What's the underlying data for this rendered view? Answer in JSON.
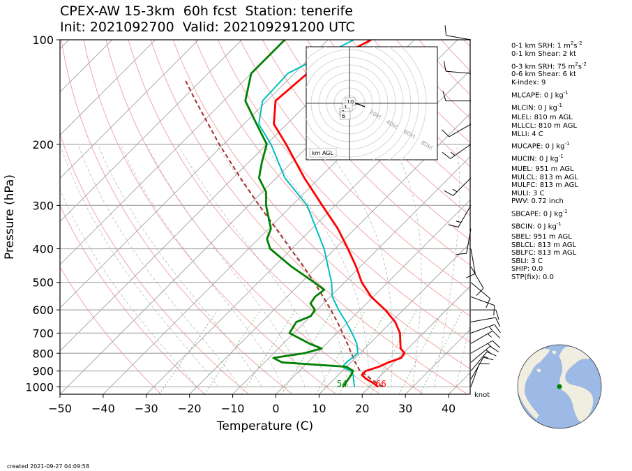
{
  "header": {
    "title_line1": "CPEX-AW 15-3km  60h fcst  Station: tenerife",
    "title_line2": "Init: 2021092700  Valid: 202109291200 UTC"
  },
  "footer": {
    "created": "created 2021-09-27 04:09:58"
  },
  "stats": [
    {
      "label": "0-1 km SRH: 1 m",
      "sup": "2",
      "mid": "s",
      "sup2": "-2"
    },
    {
      "label": "0-1 km Shear: 2 kt"
    },
    {
      "label": "0-3 km SRH: 75 m",
      "sup": "2",
      "mid": "s",
      "sup2": "-2",
      "gap": true
    },
    {
      "label": "0-6 km Shear: 6 kt"
    },
    {
      "label": "K-index: 9"
    },
    {
      "label": "MLCAPE: 0 J kg",
      "sup2": "-1",
      "gap": true
    },
    {
      "label": "MLCIN: 0 J kg",
      "sup2": "-1",
      "gap": true
    },
    {
      "label": "MLEL: 810 m AGL",
      "gap": true
    },
    {
      "label": "MLLCL: 810 m AGL"
    },
    {
      "label": "MLLI: 4 C"
    },
    {
      "label": "MUCAPE: 0 J kg",
      "sup2": "-1",
      "gap": true
    },
    {
      "label": "MUCIN: 0 J kg",
      "sup2": "-1",
      "gap": true
    },
    {
      "label": "MUEL: 951 m AGL",
      "gap": true
    },
    {
      "label": "MULCL: 813 m AGL"
    },
    {
      "label": "MULFC: 813 m AGL"
    },
    {
      "label": "MULI: 3 C"
    },
    {
      "label": "PWV: 0.72 inch"
    },
    {
      "label": "SBCAPE: 0 J kg",
      "sup2": "-1",
      "gap": true
    },
    {
      "label": "SBCIN: 0 J kg",
      "sup2": "-1",
      "gap": true
    },
    {
      "label": "SBEL: 951 m AGL",
      "gap": true
    },
    {
      "label": "SBLCL: 813 m AGL"
    },
    {
      "label": "SBLFC: 813 m AGL"
    },
    {
      "label": "SBLI: 3 C"
    },
    {
      "label": "SHIP: 0.0"
    },
    {
      "label": "STP(fix): 0.0"
    }
  ],
  "colors": {
    "temperature": "#ff0000",
    "dewpoint": "#008000",
    "wetbulb": "#00bfbf",
    "parcel": "#a52a2a",
    "isobar": "#aaaaaa",
    "isotherm": "#aaaaaa",
    "dry_adiabat": "#f4a6a6",
    "moist_adiabat": "#bbbbbb",
    "mixing_ratio": "#7fbf7f",
    "ocean": "#9db9e6",
    "land": "#efeee0"
  },
  "chart_data": {
    "type": "line",
    "subtype": "skew-T log-p",
    "xlabel": "Temperature (C)",
    "ylabel": "Pressure (hPa)",
    "xlim": [
      -50,
      45
    ],
    "ylim": [
      1050,
      100
    ],
    "y_scale": "log",
    "xticks": [
      -50,
      -40,
      -30,
      -20,
      -10,
      0,
      10,
      20,
      30,
      40
    ],
    "yticks": [
      100,
      200,
      300,
      400,
      500,
      600,
      700,
      800,
      900,
      1000
    ],
    "grid": true,
    "surface_labels": {
      "dewpoint": "54",
      "temperature": "66"
    },
    "wind_unit_label": "knot",
    "series": [
      {
        "name": "temperature",
        "points": [
          [
            1000,
            22
          ],
          [
            975,
            20
          ],
          [
            950,
            17.5
          ],
          [
            925,
            15.5
          ],
          [
            900,
            15.4
          ],
          [
            875,
            17.5
          ],
          [
            850,
            18.7
          ],
          [
            825,
            20.6
          ],
          [
            800,
            20.3
          ],
          [
            775,
            18.3
          ],
          [
            750,
            17.1
          ],
          [
            700,
            14.6
          ],
          [
            650,
            10.9
          ],
          [
            600,
            5.8
          ],
          [
            550,
            -0.5
          ],
          [
            500,
            -6.0
          ],
          [
            450,
            -11.0
          ],
          [
            400,
            -17.0
          ],
          [
            350,
            -24.0
          ],
          [
            300,
            -33.0
          ],
          [
            250,
            -43.5
          ],
          [
            200,
            -55.5
          ],
          [
            175,
            -63.0
          ],
          [
            150,
            -68.0
          ],
          [
            125,
            -67.0
          ],
          [
            100,
            -60.0
          ]
        ]
      },
      {
        "name": "dewpoint",
        "points": [
          [
            1000,
            13.8
          ],
          [
            950,
            13.3
          ],
          [
            925,
            13.0
          ],
          [
            900,
            12.5
          ],
          [
            875,
            10.0
          ],
          [
            850,
            -6.0
          ],
          [
            825,
            -9.0
          ],
          [
            800,
            -3.0
          ],
          [
            775,
            0.0
          ],
          [
            750,
            -4.0
          ],
          [
            700,
            -11.0
          ],
          [
            650,
            -12.0
          ],
          [
            625,
            -10.0
          ],
          [
            600,
            -10.5
          ],
          [
            575,
            -13.0
          ],
          [
            550,
            -13.5
          ],
          [
            525,
            -13.0
          ],
          [
            500,
            -17.0
          ],
          [
            450,
            -26.0
          ],
          [
            400,
            -35.0
          ],
          [
            375,
            -38.0
          ],
          [
            350,
            -39.5
          ],
          [
            300,
            -46.0
          ],
          [
            275,
            -49.0
          ],
          [
            250,
            -54.0
          ],
          [
            225,
            -57.0
          ],
          [
            200,
            -60.0
          ],
          [
            175,
            -67.0
          ],
          [
            150,
            -75.0
          ],
          [
            125,
            -80.0
          ],
          [
            100,
            -80.0
          ]
        ]
      },
      {
        "name": "wetbulb",
        "points": [
          [
            1000,
            16.5
          ],
          [
            975,
            15.5
          ],
          [
            950,
            14.5
          ],
          [
            925,
            13.5
          ],
          [
            900,
            12.0
          ],
          [
            875,
            9.0
          ],
          [
            850,
            9.0
          ],
          [
            800,
            9.5
          ],
          [
            750,
            7.0
          ],
          [
            700,
            3.5
          ],
          [
            650,
            -0.5
          ],
          [
            600,
            -5.0
          ],
          [
            550,
            -9.5
          ],
          [
            500,
            -13.0
          ],
          [
            450,
            -17.5
          ],
          [
            400,
            -22.5
          ],
          [
            350,
            -29.0
          ],
          [
            300,
            -36.5
          ],
          [
            250,
            -48.0
          ],
          [
            200,
            -59.0
          ],
          [
            175,
            -66.5
          ],
          [
            150,
            -71.0
          ],
          [
            125,
            -71.5
          ],
          [
            100,
            -64.0
          ]
        ]
      },
      {
        "name": "parcel",
        "points": [
          [
            1000,
            23.0
          ],
          [
            975,
            20.8
          ],
          [
            950,
            18.6
          ],
          [
            925,
            16.4
          ],
          [
            900,
            14.1
          ],
          [
            875,
            12.6
          ],
          [
            850,
            11.0
          ],
          [
            800,
            8.0
          ],
          [
            750,
            4.8
          ],
          [
            700,
            1.3
          ],
          [
            650,
            -2.5
          ],
          [
            600,
            -6.8
          ],
          [
            550,
            -11.6
          ],
          [
            500,
            -17.0
          ],
          [
            450,
            -23.2
          ],
          [
            400,
            -30.3
          ],
          [
            350,
            -38.3
          ],
          [
            300,
            -47.6
          ],
          [
            250,
            -58.3
          ],
          [
            200,
            -71.0
          ],
          [
            150,
            -86.5
          ],
          [
            130,
            -94.0
          ]
        ]
      }
    ],
    "hodograph": {
      "label": "km AGL",
      "ring_labels": [
        "20kt",
        "40kt",
        "60kt",
        "80kt"
      ],
      "height_labels": [
        "10",
        "1",
        "3",
        "6"
      ]
    },
    "wind_barbs": [
      {
        "p": 1000,
        "dir": 20,
        "spd": 10
      },
      {
        "p": 950,
        "dir": 30,
        "spd": 10
      },
      {
        "p": 900,
        "dir": 40,
        "spd": 15
      },
      {
        "p": 850,
        "dir": 50,
        "spd": 15
      },
      {
        "p": 800,
        "dir": 60,
        "spd": 15
      },
      {
        "p": 750,
        "dir": 60,
        "spd": 15
      },
      {
        "p": 700,
        "dir": 70,
        "spd": 15
      },
      {
        "p": 650,
        "dir": 80,
        "spd": 10
      },
      {
        "p": 600,
        "dir": 90,
        "spd": 10
      },
      {
        "p": 550,
        "dir": 110,
        "spd": 10
      },
      {
        "p": 500,
        "dir": 130,
        "spd": 10
      },
      {
        "p": 450,
        "dir": 150,
        "spd": 10
      },
      {
        "p": 400,
        "dir": 170,
        "spd": 10
      },
      {
        "p": 350,
        "dir": 190,
        "spd": 10
      },
      {
        "p": 300,
        "dir": 210,
        "spd": 15
      },
      {
        "p": 250,
        "dir": 225,
        "spd": 15
      },
      {
        "p": 200,
        "dir": 235,
        "spd": 15
      },
      {
        "p": 175,
        "dir": 240,
        "spd": 10
      },
      {
        "p": 150,
        "dir": 270,
        "spd": 10
      },
      {
        "p": 125,
        "dir": 275,
        "spd": 10
      },
      {
        "p": 100,
        "dir": 280,
        "spd": 10
      }
    ]
  }
}
